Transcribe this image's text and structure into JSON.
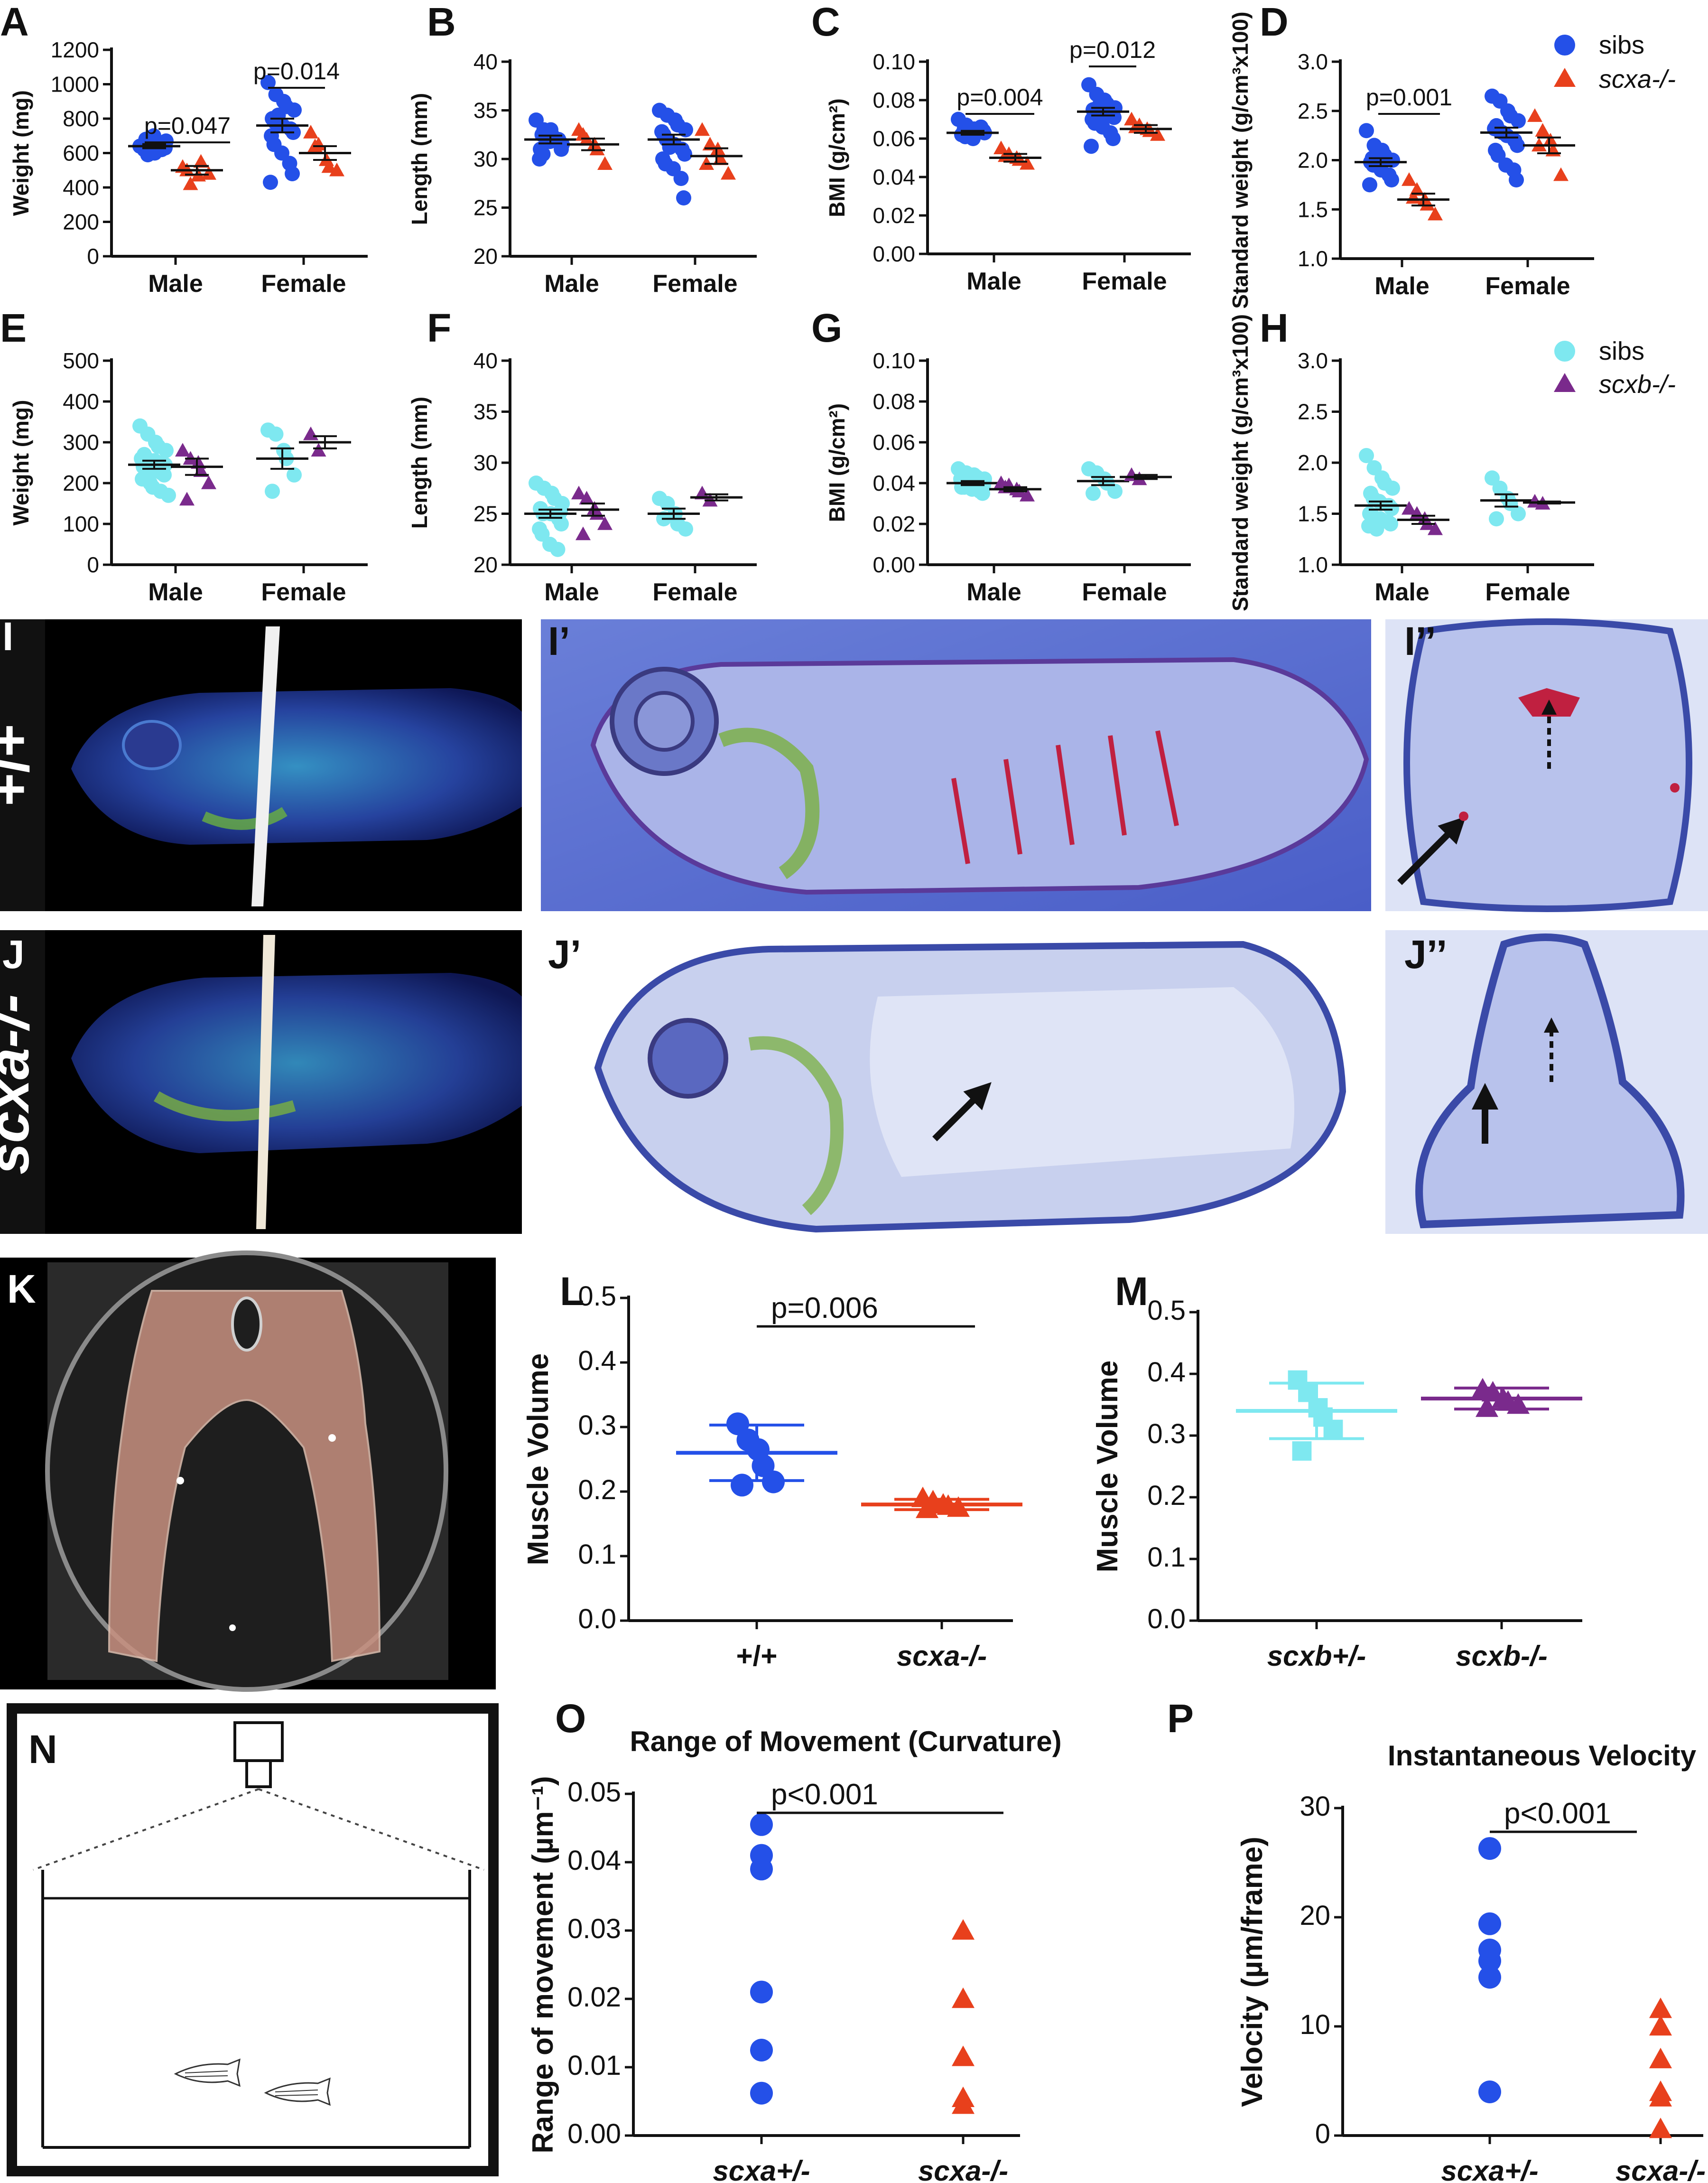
{
  "colors": {
    "scxa_sibs": "#2450e8",
    "scxa_mut": "#e8401c",
    "scxb_sibs": "#7ee8f0",
    "scxb_mut": "#7a2a8c"
  },
  "legend_top": {
    "sibs": "sibs",
    "mut": "scxa-/-"
  },
  "legend_mid": {
    "sibs": "sibs",
    "mut": "scxb-/-"
  },
  "image_labels": {
    "I": "I",
    "I1": "I’",
    "I2": "I’’",
    "J": "J",
    "J1": "J’",
    "J2": "J’’",
    "K": "K",
    "N": "N",
    "genotype_wt": "+/+",
    "genotype_mut": "scxa-/-"
  },
  "chart_data": [
    {
      "panel": "A",
      "type": "scatter",
      "ylabel": "Weight (mg)",
      "ylim": [
        0,
        1200
      ],
      "yticks": [
        0,
        200,
        400,
        600,
        800,
        1000,
        1200
      ],
      "categories": [
        "Male",
        "Female"
      ],
      "pvalues": [
        {
          "text": "p=0.047",
          "group": 0
        },
        {
          "text": "p=0.014",
          "group": 1
        }
      ],
      "series": [
        {
          "name": "sibs",
          "group": 0,
          "values": [
            640,
            590,
            610,
            650,
            670,
            620,
            640,
            600,
            660,
            630,
            650,
            680,
            700,
            620,
            640
          ],
          "mean": 640,
          "sem": 12
        },
        {
          "name": "scxa-/-",
          "group": 0,
          "values": [
            520,
            420,
            470,
            550,
            480,
            500
          ],
          "mean": 500,
          "sem": 25
        },
        {
          "name": "sibs",
          "group": 1,
          "values": [
            1010,
            940,
            900,
            870,
            850,
            800,
            780,
            760,
            740,
            720,
            700,
            650,
            600,
            540,
            480,
            430,
            820,
            760
          ],
          "mean": 760,
          "sem": 40
        },
        {
          "name": "scxa-/-",
          "group": 1,
          "values": [
            720,
            650,
            560,
            520,
            500,
            640
          ],
          "mean": 600,
          "sem": 40
        }
      ]
    },
    {
      "panel": "B",
      "type": "scatter",
      "ylabel": "Length (mm)",
      "ylim": [
        20,
        40
      ],
      "yticks": [
        20,
        25,
        30,
        35,
        40
      ],
      "categories": [
        "Male",
        "Female"
      ],
      "pvalues": [],
      "series": [
        {
          "name": "sibs",
          "group": 0,
          "values": [
            34,
            33,
            32.5,
            32,
            31.5,
            31,
            30.5,
            33,
            32,
            31,
            30,
            32.5,
            31.8
          ],
          "mean": 32,
          "sem": 0.4
        },
        {
          "name": "scxa-/-",
          "group": 0,
          "values": [
            33,
            32,
            31.5,
            31,
            29.5,
            32.5
          ],
          "mean": 31.5,
          "sem": 0.6
        },
        {
          "name": "sibs",
          "group": 1,
          "values": [
            35,
            34.5,
            34,
            33.5,
            33,
            32.5,
            32,
            31.5,
            31,
            30.5,
            30,
            29.5,
            29,
            28,
            26,
            32.8,
            31.2
          ],
          "mean": 32,
          "sem": 0.5
        },
        {
          "name": "scxa-/-",
          "group": 1,
          "values": [
            33,
            31.5,
            31,
            30,
            28.5,
            29.5
          ],
          "mean": 30.3,
          "sem": 0.8
        }
      ]
    },
    {
      "panel": "C",
      "type": "scatter",
      "ylabel": "BMI (g/cm²)",
      "ylim": [
        0,
        0.1
      ],
      "yticks": [
        0,
        0.02,
        0.04,
        0.06,
        0.08,
        0.1
      ],
      "categories": [
        "Male",
        "Female"
      ],
      "pvalues": [
        {
          "text": "p=0.004",
          "group": 0
        },
        {
          "text": "p=0.012",
          "group": 1
        }
      ],
      "series": [
        {
          "name": "sibs",
          "group": 0,
          "values": [
            0.07,
            0.067,
            0.065,
            0.064,
            0.063,
            0.062,
            0.061,
            0.06,
            0.066,
            0.064,
            0.062,
            0.065,
            0.063
          ],
          "mean": 0.063,
          "sem": 0.001
        },
        {
          "name": "scxa-/-",
          "group": 0,
          "values": [
            0.055,
            0.052,
            0.05,
            0.049,
            0.047,
            0.051
          ],
          "mean": 0.05,
          "sem": 0.002
        },
        {
          "name": "sibs",
          "group": 1,
          "values": [
            0.088,
            0.083,
            0.08,
            0.078,
            0.076,
            0.075,
            0.074,
            0.073,
            0.072,
            0.071,
            0.07,
            0.068,
            0.066,
            0.063,
            0.06,
            0.056,
            0.077,
            0.073
          ],
          "mean": 0.074,
          "sem": 0.002
        },
        {
          "name": "scxa-/-",
          "group": 1,
          "values": [
            0.07,
            0.067,
            0.065,
            0.064,
            0.062,
            0.066
          ],
          "mean": 0.065,
          "sem": 0.002
        }
      ]
    },
    {
      "panel": "D",
      "type": "scatter",
      "ylabel": "Standard weight (g/cm³x100)",
      "ylim": [
        1.0,
        3.0
      ],
      "yticks": [
        1.0,
        1.5,
        2.0,
        2.5,
        3.0
      ],
      "categories": [
        "Male",
        "Female"
      ],
      "pvalues": [
        {
          "text": "p=0.001",
          "group": 0
        }
      ],
      "series": [
        {
          "name": "sibs",
          "group": 0,
          "values": [
            2.3,
            2.15,
            2.1,
            2.05,
            2.0,
            1.98,
            1.95,
            1.9,
            1.85,
            1.8,
            1.75,
            2.02,
            1.92
          ],
          "mean": 1.98,
          "sem": 0.04
        },
        {
          "name": "scxa-/-",
          "group": 0,
          "values": [
            1.8,
            1.7,
            1.6,
            1.55,
            1.45,
            1.62
          ],
          "mean": 1.6,
          "sem": 0.06
        },
        {
          "name": "sibs",
          "group": 1,
          "values": [
            2.65,
            2.6,
            2.5,
            2.45,
            2.4,
            2.35,
            2.3,
            2.25,
            2.2,
            2.15,
            2.1,
            2.05,
            1.95,
            1.9,
            1.8,
            2.32,
            2.28
          ],
          "mean": 2.28,
          "sem": 0.05
        },
        {
          "name": "scxa-/-",
          "group": 1,
          "values": [
            2.45,
            2.3,
            2.2,
            2.1,
            1.85,
            2.15
          ],
          "mean": 2.15,
          "sem": 0.08
        }
      ]
    },
    {
      "panel": "E",
      "type": "scatter",
      "ylabel": "Weight (mg)",
      "ylim": [
        0,
        500
      ],
      "yticks": [
        0,
        100,
        200,
        300,
        400,
        500
      ],
      "categories": [
        "Male",
        "Female"
      ],
      "pvalues": [],
      "series": [
        {
          "name": "sibs",
          "group": 0,
          "values": [
            340,
            320,
            300,
            290,
            280,
            270,
            260,
            255,
            250,
            245,
            240,
            235,
            230,
            225,
            220,
            210,
            200,
            190,
            180,
            170,
            260,
            250
          ],
          "mean": 245,
          "sem": 10
        },
        {
          "name": "scxb-/-",
          "group": 0,
          "values": [
            280,
            260,
            250,
            230,
            200,
            160
          ],
          "mean": 240,
          "sem": 20
        },
        {
          "name": "sibs",
          "group": 1,
          "values": [
            330,
            320,
            280,
            260,
            220,
            180
          ],
          "mean": 260,
          "sem": 25
        },
        {
          "name": "scxb-/-",
          "group": 1,
          "values": [
            320,
            280
          ],
          "mean": 300,
          "sem": 15
        }
      ]
    },
    {
      "panel": "F",
      "type": "scatter",
      "ylabel": "Length (mm)",
      "ylim": [
        20,
        40
      ],
      "yticks": [
        20,
        25,
        30,
        35,
        40
      ],
      "categories": [
        "Male",
        "Female"
      ],
      "pvalues": [],
      "series": [
        {
          "name": "sibs",
          "group": 0,
          "values": [
            28,
            27.5,
            27,
            26.5,
            26,
            25.5,
            25,
            25,
            24.5,
            24,
            23.5,
            23,
            22,
            21.5,
            25.2
          ],
          "mean": 25,
          "sem": 0.4
        },
        {
          "name": "scxb-/-",
          "group": 0,
          "values": [
            27,
            26.5,
            25.5,
            25,
            24,
            23
          ],
          "mean": 25.4,
          "sem": 0.6
        },
        {
          "name": "sibs",
          "group": 1,
          "values": [
            26.5,
            26,
            25,
            24,
            23.5,
            24.5
          ],
          "mean": 25,
          "sem": 0.5
        },
        {
          "name": "scxb-/-",
          "group": 1,
          "values": [
            27,
            26.3
          ],
          "mean": 26.6,
          "sem": 0.3
        }
      ]
    },
    {
      "panel": "G",
      "type": "scatter",
      "ylabel": "BMI (g/cm²)",
      "ylim": [
        0,
        0.1
      ],
      "yticks": [
        0,
        0.02,
        0.04,
        0.06,
        0.08,
        0.1
      ],
      "categories": [
        "Male",
        "Female"
      ],
      "pvalues": [],
      "series": [
        {
          "name": "sibs",
          "group": 0,
          "values": [
            0.047,
            0.045,
            0.044,
            0.043,
            0.042,
            0.041,
            0.04,
            0.04,
            0.039,
            0.039,
            0.038,
            0.038,
            0.037,
            0.036,
            0.035,
            0.042
          ],
          "mean": 0.04,
          "sem": 0.001
        },
        {
          "name": "scxb-/-",
          "group": 0,
          "values": [
            0.04,
            0.039,
            0.037,
            0.036,
            0.034,
            0.038
          ],
          "mean": 0.037,
          "sem": 0.001
        },
        {
          "name": "sibs",
          "group": 1,
          "values": [
            0.047,
            0.045,
            0.042,
            0.04,
            0.036,
            0.035
          ],
          "mean": 0.041,
          "sem": 0.002
        },
        {
          "name": "scxb-/-",
          "group": 1,
          "values": [
            0.044,
            0.042
          ],
          "mean": 0.043,
          "sem": 0.001
        }
      ]
    },
    {
      "panel": "H",
      "type": "scatter",
      "ylabel": "Standard weight (g/cm³x100)",
      "ylim": [
        1.0,
        3.0
      ],
      "yticks": [
        1.0,
        1.5,
        2.0,
        2.5,
        3.0
      ],
      "categories": [
        "Male",
        "Female"
      ],
      "pvalues": [],
      "series": [
        {
          "name": "sibs",
          "group": 0,
          "values": [
            2.07,
            1.95,
            1.85,
            1.8,
            1.75,
            1.7,
            1.65,
            1.6,
            1.58,
            1.55,
            1.5,
            1.48,
            1.45,
            1.42,
            1.4,
            1.38,
            1.35,
            1.62
          ],
          "mean": 1.58,
          "sem": 0.04
        },
        {
          "name": "scxb-/-",
          "group": 0,
          "values": [
            1.55,
            1.5,
            1.45,
            1.4,
            1.35
          ],
          "mean": 1.44,
          "sem": 0.04
        },
        {
          "name": "sibs",
          "group": 1,
          "values": [
            1.85,
            1.75,
            1.65,
            1.6,
            1.5,
            1.45
          ],
          "mean": 1.63,
          "sem": 0.06
        },
        {
          "name": "scxb-/-",
          "group": 1,
          "values": [
            1.62,
            1.6
          ],
          "mean": 1.61,
          "sem": 0.01
        }
      ]
    },
    {
      "panel": "L",
      "type": "scatter",
      "ylabel": "Muscle Volume",
      "ylim": [
        0,
        0.5
      ],
      "yticks": [
        0.0,
        0.1,
        0.2,
        0.3,
        0.4,
        0.5
      ],
      "categories": [
        "+/+",
        "scxa-/-"
      ],
      "pvalues": [
        {
          "text": "p=0.006",
          "from": 0,
          "to": 1
        }
      ],
      "series": [
        {
          "name": "+/+",
          "group": 0,
          "values": [
            0.305,
            0.28,
            0.265,
            0.24,
            0.215,
            0.21
          ],
          "mean": 0.26,
          "sd": 0.043
        },
        {
          "name": "scxa-/-",
          "group": 1,
          "values": [
            0.19,
            0.185,
            0.18,
            0.178,
            0.175,
            0.173
          ],
          "mean": 0.18,
          "sd": 0.008
        }
      ]
    },
    {
      "panel": "M",
      "type": "scatter",
      "ylabel": "Muscle Volume",
      "ylim": [
        0,
        0.5
      ],
      "yticks": [
        0.0,
        0.1,
        0.2,
        0.3,
        0.4,
        0.5
      ],
      "categories": [
        "scxb+/-",
        "scxb-/-"
      ],
      "pvalues": [],
      "series": [
        {
          "name": "scxb+/-",
          "group": 0,
          "values": [
            0.39,
            0.37,
            0.345,
            0.33,
            0.31,
            0.275
          ],
          "mean": 0.34,
          "sd": 0.045
        },
        {
          "name": "scxb-/-",
          "group": 1,
          "values": [
            0.375,
            0.37,
            0.36,
            0.355,
            0.35,
            0.345
          ],
          "mean": 0.36,
          "sd": 0.017
        }
      ]
    },
    {
      "panel": "O",
      "type": "scatter",
      "title": "Range of Movement (Curvature)",
      "ylabel": "Range of movement (µm⁻¹)",
      "ylim": [
        0,
        0.05
      ],
      "yticks": [
        0.0,
        0.01,
        0.02,
        0.03,
        0.04,
        0.05
      ],
      "categories": [
        "scxa+/-",
        "scxa-/-"
      ],
      "pvalues": [
        {
          "text": "p<0.001",
          "from": 0,
          "to": 1
        }
      ],
      "series": [
        {
          "name": "scxa+/-",
          "group": 0,
          "values": [
            0.0455,
            0.041,
            0.039,
            0.021,
            0.0125,
            0.0062
          ]
        },
        {
          "name": "scxa-/-",
          "group": 1,
          "values": [
            0.03,
            0.02,
            0.0115,
            0.0055,
            0.0045
          ]
        }
      ]
    },
    {
      "panel": "P",
      "type": "scatter",
      "title": "Instantaneous Velocity",
      "ylabel": "Velocity (µm/frame)",
      "ylim": [
        0,
        30
      ],
      "yticks": [
        0,
        10,
        20,
        30
      ],
      "categories": [
        "scxa+/-",
        "scxa-/-"
      ],
      "pvalues": [
        {
          "text": "p<0.001",
          "from": 0,
          "to": 1
        }
      ],
      "series": [
        {
          "name": "scxa+/-",
          "group": 0,
          "values": [
            26.3,
            19.4,
            17.0,
            16.0,
            14.5,
            4.0
          ]
        },
        {
          "name": "scxa-/-",
          "group": 1,
          "values": [
            11.6,
            10.0,
            7.0,
            4.0,
            3.5,
            0.6
          ]
        }
      ]
    }
  ]
}
